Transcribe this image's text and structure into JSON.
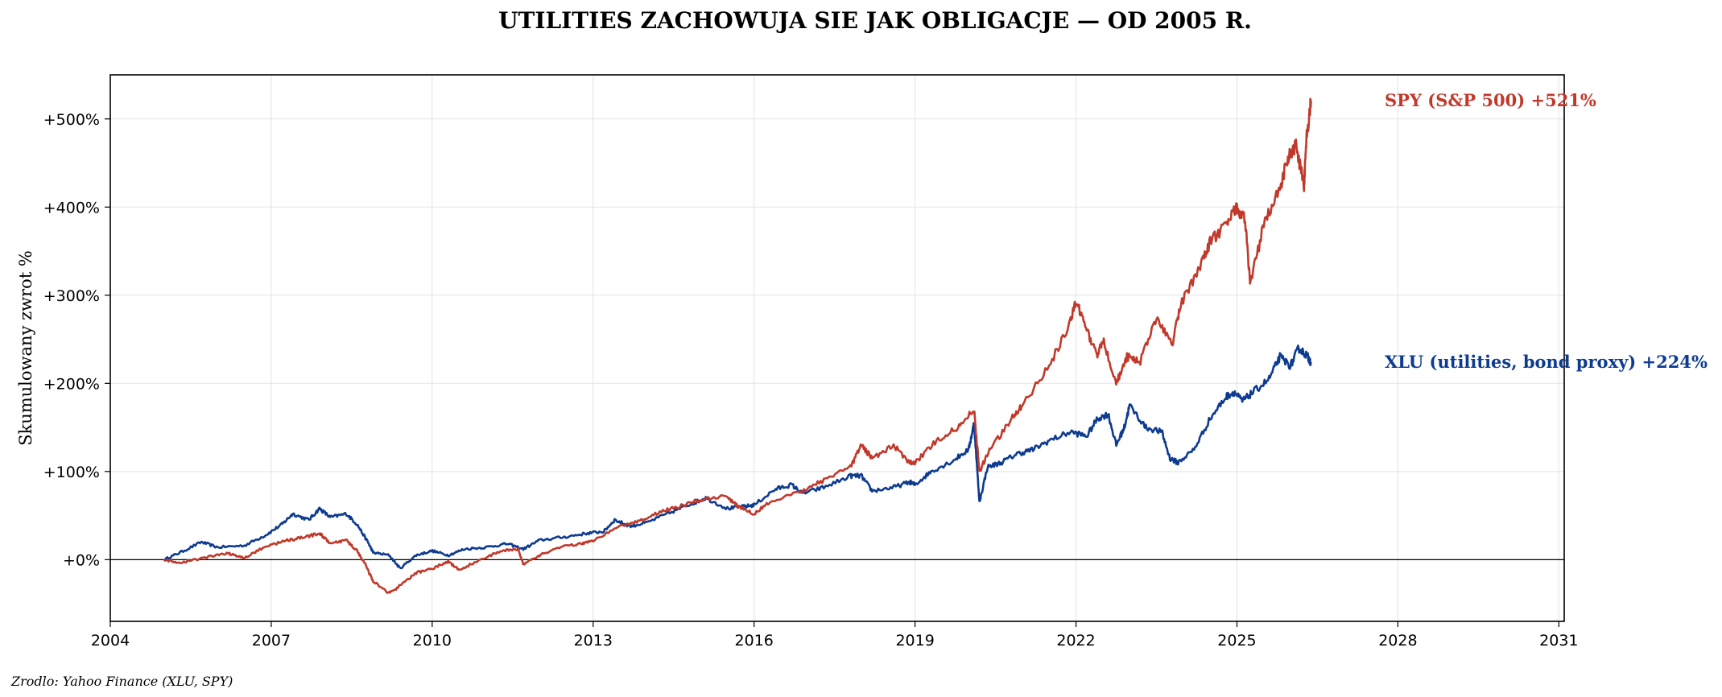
{
  "chart_data": {
    "type": "line",
    "title": "UTILITIES ZACHOWUJA SIE JAK OBLIGACJE — OD 2005 R.",
    "xlabel": "",
    "ylabel": "Skumulowany zwrot %",
    "xlim": [
      2004.0,
      2031.1
    ],
    "ylim": [
      -70,
      550
    ],
    "x_ticks": [
      2004,
      2007,
      2010,
      2013,
      2016,
      2019,
      2022,
      2025,
      2028,
      2031
    ],
    "x_tick_labels": [
      "2004",
      "2007",
      "2010",
      "2013",
      "2016",
      "2019",
      "2022",
      "2025",
      "2028",
      "2031"
    ],
    "y_ticks": [
      0,
      100,
      200,
      300,
      400,
      500
    ],
    "y_tick_labels": [
      "+0%",
      "+100%",
      "+200%",
      "+300%",
      "+400%",
      "+500%"
    ],
    "grid": true,
    "zero_line": true,
    "series": [
      {
        "name": "XLU (utilities, bond proxy)",
        "label": "XLU (utilities, bond proxy)  +224%",
        "color": "#0d3b8f",
        "points": [
          [
            2005.0,
            0
          ],
          [
            2005.3,
            8
          ],
          [
            2005.7,
            20
          ],
          [
            2006.0,
            14
          ],
          [
            2006.5,
            16
          ],
          [
            2006.9,
            28
          ],
          [
            2007.2,
            40
          ],
          [
            2007.4,
            52
          ],
          [
            2007.7,
            45
          ],
          [
            2007.9,
            58
          ],
          [
            2008.1,
            48
          ],
          [
            2008.4,
            52
          ],
          [
            2008.6,
            40
          ],
          [
            2008.8,
            20
          ],
          [
            2008.9,
            8
          ],
          [
            2009.2,
            5
          ],
          [
            2009.4,
            -10
          ],
          [
            2009.7,
            5
          ],
          [
            2010.0,
            10
          ],
          [
            2010.3,
            5
          ],
          [
            2010.6,
            12
          ],
          [
            2011.0,
            14
          ],
          [
            2011.4,
            18
          ],
          [
            2011.7,
            12
          ],
          [
            2012.0,
            22
          ],
          [
            2012.5,
            26
          ],
          [
            2012.9,
            30
          ],
          [
            2013.2,
            32
          ],
          [
            2013.4,
            45
          ],
          [
            2013.7,
            38
          ],
          [
            2014.0,
            42
          ],
          [
            2014.5,
            55
          ],
          [
            2014.9,
            65
          ],
          [
            2015.1,
            70
          ],
          [
            2015.5,
            58
          ],
          [
            2015.8,
            60
          ],
          [
            2016.0,
            62
          ],
          [
            2016.4,
            80
          ],
          [
            2016.7,
            85
          ],
          [
            2016.9,
            75
          ],
          [
            2017.3,
            82
          ],
          [
            2017.8,
            95
          ],
          [
            2018.0,
            95
          ],
          [
            2018.2,
            78
          ],
          [
            2018.6,
            82
          ],
          [
            2018.9,
            88
          ],
          [
            2019.0,
            85
          ],
          [
            2019.3,
            100
          ],
          [
            2019.7,
            112
          ],
          [
            2020.0,
            125
          ],
          [
            2020.1,
            155
          ],
          [
            2020.2,
            65
          ],
          [
            2020.35,
            105
          ],
          [
            2020.6,
            110
          ],
          [
            2020.9,
            120
          ],
          [
            2021.2,
            125
          ],
          [
            2021.5,
            135
          ],
          [
            2021.9,
            145
          ],
          [
            2022.2,
            140
          ],
          [
            2022.4,
            160
          ],
          [
            2022.6,
            165
          ],
          [
            2022.75,
            130
          ],
          [
            2022.9,
            150
          ],
          [
            2023.0,
            175
          ],
          [
            2023.3,
            150
          ],
          [
            2023.6,
            145
          ],
          [
            2023.75,
            115
          ],
          [
            2023.9,
            110
          ],
          [
            2024.2,
            125
          ],
          [
            2024.5,
            160
          ],
          [
            2024.8,
            185
          ],
          [
            2024.95,
            190
          ],
          [
            2025.1,
            180
          ],
          [
            2025.3,
            190
          ],
          [
            2025.6,
            205
          ],
          [
            2025.8,
            230
          ],
          [
            2026.0,
            220
          ],
          [
            2026.15,
            240
          ],
          [
            2026.3,
            232
          ],
          [
            2026.38,
            224
          ]
        ]
      },
      {
        "name": "SPY (S&P 500)",
        "label": "SPY (S&P 500)  +521%",
        "color": "#c0392b",
        "points": [
          [
            2005.0,
            0
          ],
          [
            2005.3,
            -4
          ],
          [
            2005.8,
            3
          ],
          [
            2006.2,
            7
          ],
          [
            2006.5,
            2
          ],
          [
            2006.9,
            15
          ],
          [
            2007.3,
            22
          ],
          [
            2007.6,
            25
          ],
          [
            2007.9,
            30
          ],
          [
            2008.1,
            18
          ],
          [
            2008.4,
            22
          ],
          [
            2008.6,
            10
          ],
          [
            2008.75,
            -5
          ],
          [
            2008.9,
            -25
          ],
          [
            2009.2,
            -38
          ],
          [
            2009.4,
            -30
          ],
          [
            2009.7,
            -15
          ],
          [
            2010.0,
            -10
          ],
          [
            2010.3,
            -2
          ],
          [
            2010.5,
            -12
          ],
          [
            2010.9,
            0
          ],
          [
            2011.3,
            10
          ],
          [
            2011.6,
            12
          ],
          [
            2011.7,
            -5
          ],
          [
            2012.0,
            5
          ],
          [
            2012.4,
            15
          ],
          [
            2012.8,
            18
          ],
          [
            2013.0,
            22
          ],
          [
            2013.5,
            38
          ],
          [
            2013.9,
            45
          ],
          [
            2014.3,
            55
          ],
          [
            2014.7,
            62
          ],
          [
            2015.0,
            68
          ],
          [
            2015.5,
            72
          ],
          [
            2015.7,
            60
          ],
          [
            2016.0,
            52
          ],
          [
            2016.3,
            65
          ],
          [
            2016.9,
            78
          ],
          [
            2017.3,
            90
          ],
          [
            2017.8,
            105
          ],
          [
            2018.0,
            130
          ],
          [
            2018.2,
            115
          ],
          [
            2018.6,
            130
          ],
          [
            2018.9,
            110
          ],
          [
            2019.0,
            110
          ],
          [
            2019.4,
            135
          ],
          [
            2019.8,
            150
          ],
          [
            2020.1,
            170
          ],
          [
            2020.2,
            100
          ],
          [
            2020.4,
            125
          ],
          [
            2020.8,
            160
          ],
          [
            2021.0,
            175
          ],
          [
            2021.5,
            220
          ],
          [
            2021.9,
            270
          ],
          [
            2022.0,
            295
          ],
          [
            2022.2,
            260
          ],
          [
            2022.4,
            230
          ],
          [
            2022.5,
            250
          ],
          [
            2022.75,
            200
          ],
          [
            2022.95,
            230
          ],
          [
            2023.2,
            225
          ],
          [
            2023.5,
            275
          ],
          [
            2023.8,
            245
          ],
          [
            2023.95,
            290
          ],
          [
            2024.3,
            330
          ],
          [
            2024.5,
            360
          ],
          [
            2024.8,
            380
          ],
          [
            2025.0,
            400
          ],
          [
            2025.15,
            385
          ],
          [
            2025.25,
            312
          ],
          [
            2025.5,
            380
          ],
          [
            2025.8,
            420
          ],
          [
            2025.95,
            455
          ],
          [
            2026.1,
            470
          ],
          [
            2026.25,
            425
          ],
          [
            2026.3,
            480
          ],
          [
            2026.38,
            521
          ]
        ]
      }
    ]
  },
  "source": "Zrodlo: Yahoo Finance (XLU, SPY)"
}
